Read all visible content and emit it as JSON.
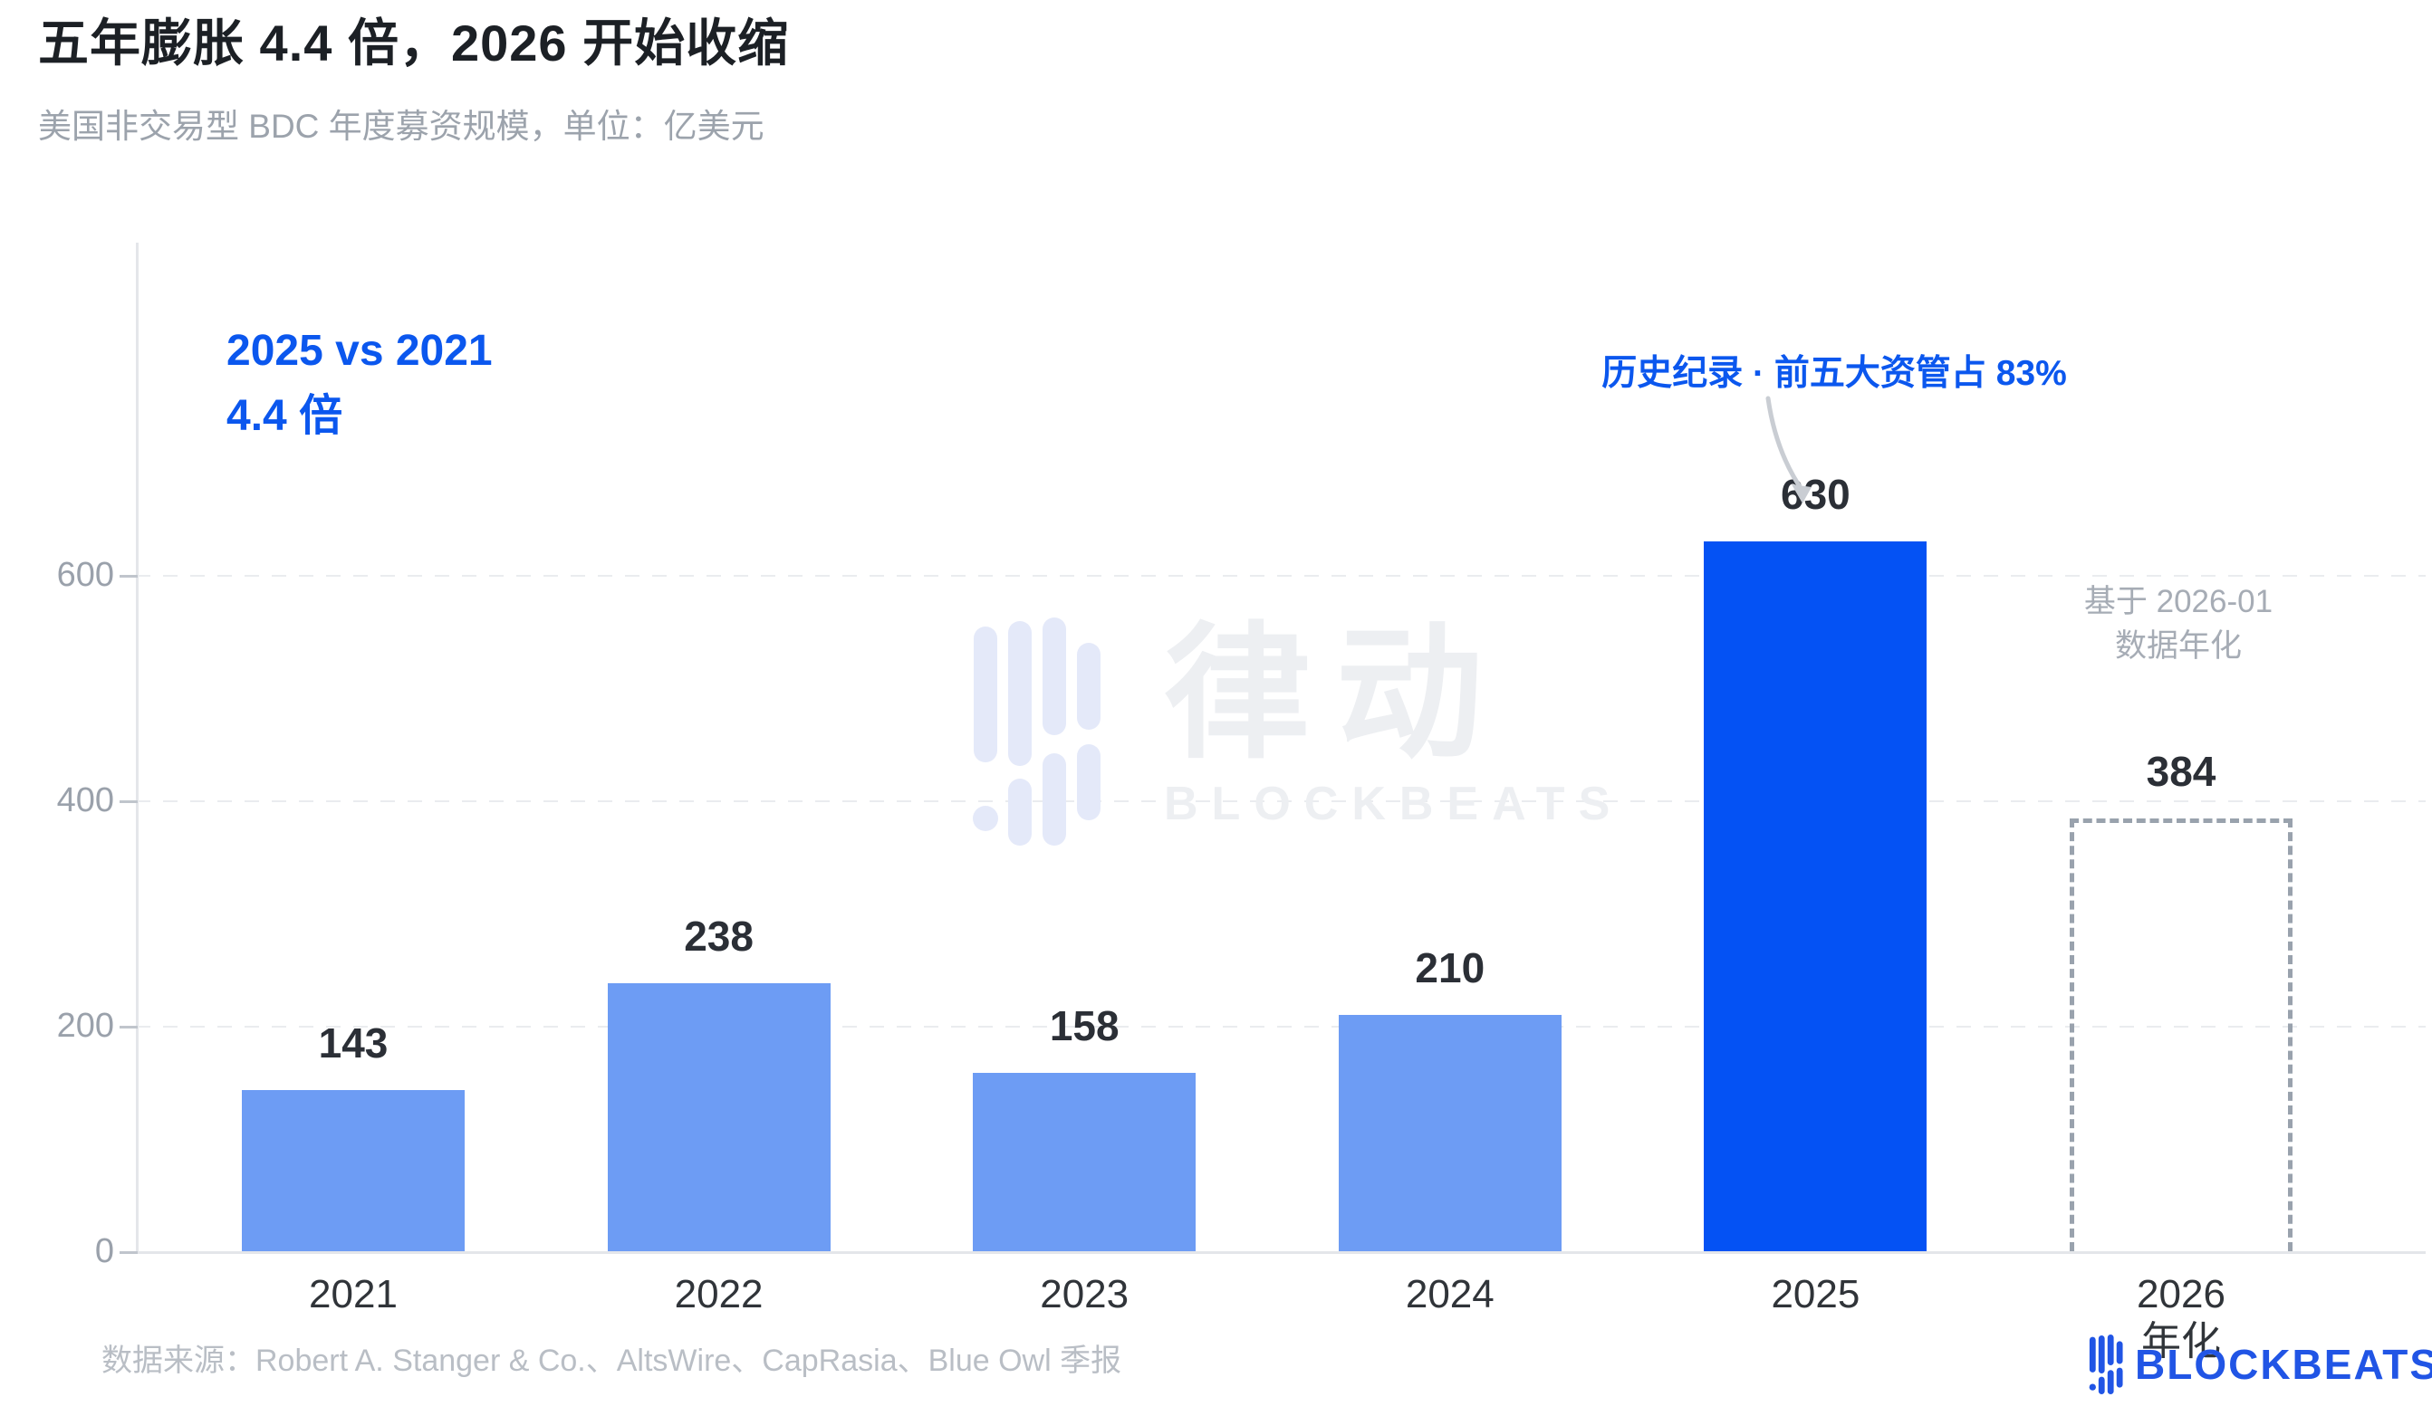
{
  "page": {
    "title": "五年膨胀 4.4 倍，2026 开始收缩",
    "subtitle": "美国非交易型 BDC 年度募资规模，单位：亿美元",
    "source": "数据来源：Robert A. Stanger & Co.、AltsWire、CapRasia、Blue Owl 季报"
  },
  "annotations": {
    "comparison_line1": "2025 vs 2021",
    "comparison_line2": "4.4 倍",
    "record_note": "历史纪录 · 前五大资管占 83%",
    "annualized_note_line1": "基于 2026-01",
    "annualized_note_line2": "数据年化"
  },
  "watermark": {
    "cn": "律动",
    "en": "BLOCKBEATS"
  },
  "footer_logo": {
    "text": "BLOCKBEATS"
  },
  "colors": {
    "accent_blue": "#0452F4",
    "light_blue": "#6D9CF4",
    "annotation_blue": "#0B57EE",
    "dashed_border": "#99A2AD",
    "grid_color": "#EAECEF",
    "axis_color": "#E4E6EA",
    "tick_color": "#C0C5CC",
    "tick_label_color": "#9AA1AB",
    "x_label_color": "#303439",
    "value_label_color": "#2B2F36",
    "title_color": "#1C2025",
    "subtitle_color": "#9CA3AC",
    "note_gray": "#A6ACB5",
    "footer_text": "#B9BEC5",
    "footer_logo_blue": "#2155E5",
    "watermark_bar": "#E4E9F9",
    "watermark_text": "#EDEFF2",
    "arrow_color": "#C9CDD3"
  },
  "chart_data": {
    "type": "bar",
    "title": "五年膨胀 4.4 倍，2026 开始收缩",
    "subtitle": "美国非交易型 BDC 年度募资规模，单位：亿美元",
    "unit": "亿美元",
    "categories": [
      "2021",
      "2022",
      "2023",
      "2024",
      "2025",
      "2026"
    ],
    "values": [
      143,
      238,
      158,
      210,
      630,
      384
    ],
    "bar_styles": [
      "light",
      "light",
      "light",
      "light",
      "accent",
      "dashed-projection"
    ],
    "x_sublabels": [
      "",
      "",
      "",
      "",
      "",
      "年化"
    ],
    "ylim": [
      0,
      700
    ],
    "yticks": [
      0,
      200,
      400,
      600
    ],
    "grid": "horizontal-dashed",
    "legend": "none"
  }
}
